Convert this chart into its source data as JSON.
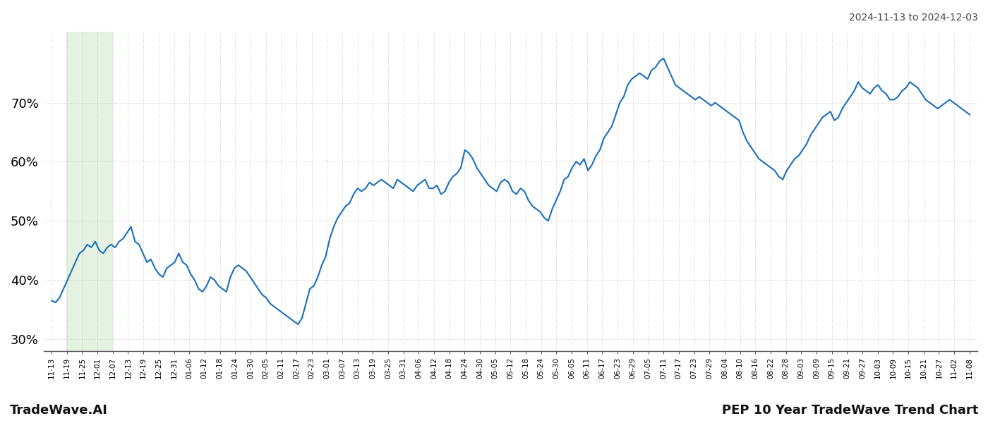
{
  "title_date_range": "2024-11-13 to 2024-12-03",
  "footer_left": "TradeWave.AI",
  "footer_right": "PEP 10 Year TradeWave Trend Chart",
  "line_color": "#1a6fba",
  "line_width": 1.5,
  "background_color": "#ffffff",
  "grid_color": "#cccccc",
  "grid_linestyle": "dotted",
  "highlight_color": "#d5ead0",
  "highlight_alpha": 0.6,
  "highlight_x_start_label": "11-19",
  "highlight_x_end_label": "12-07",
  "ylim": [
    28,
    82
  ],
  "yticks": [
    30,
    40,
    50,
    60,
    70
  ],
  "ytick_fontsize": 13,
  "xtick_fontsize": 7.5,
  "x_labels": [
    "11-13",
    "11-19",
    "11-25",
    "12-01",
    "12-07",
    "12-13",
    "12-19",
    "12-25",
    "12-31",
    "01-06",
    "01-12",
    "01-18",
    "01-24",
    "01-30",
    "02-05",
    "02-11",
    "02-17",
    "02-23",
    "03-01",
    "03-07",
    "03-13",
    "03-19",
    "03-25",
    "03-31",
    "04-06",
    "04-12",
    "04-18",
    "04-24",
    "04-30",
    "05-05",
    "05-12",
    "05-18",
    "05-24",
    "05-30",
    "06-05",
    "06-11",
    "06-17",
    "06-23",
    "06-29",
    "07-05",
    "07-11",
    "07-17",
    "07-23",
    "07-29",
    "08-04",
    "08-10",
    "08-16",
    "08-22",
    "08-28",
    "09-03",
    "09-09",
    "09-15",
    "09-21",
    "09-27",
    "10-03",
    "10-09",
    "10-15",
    "10-21",
    "10-27",
    "11-02",
    "11-08"
  ],
  "y_values": [
    36.5,
    36.2,
    37.0,
    38.5,
    40.0,
    41.5,
    43.0,
    44.5,
    45.0,
    46.0,
    45.5,
    46.5,
    45.0,
    44.5,
    45.5,
    46.0,
    45.5,
    46.5,
    47.0,
    48.0,
    49.0,
    46.5,
    46.0,
    44.5,
    43.0,
    43.5,
    42.0,
    41.0,
    40.5,
    42.0,
    42.5,
    43.0,
    44.5,
    43.0,
    42.5,
    41.0,
    40.0,
    38.5,
    38.0,
    39.0,
    40.5,
    40.0,
    39.0,
    38.5,
    38.0,
    40.5,
    42.0,
    42.5,
    42.0,
    41.5,
    40.5,
    39.5,
    38.5,
    37.5,
    37.0,
    36.0,
    35.5,
    35.0,
    34.5,
    34.0,
    33.5,
    33.0,
    32.5,
    33.5,
    36.0,
    38.5,
    39.0,
    40.5,
    42.5,
    44.0,
    47.0,
    49.0,
    50.5,
    51.5,
    52.5,
    53.0,
    54.5,
    55.5,
    55.0,
    55.5,
    56.5,
    56.0,
    56.5,
    57.0,
    56.5,
    56.0,
    55.5,
    57.0,
    56.5,
    56.0,
    55.5,
    55.0,
    56.0,
    56.5,
    57.0,
    55.5,
    55.5,
    56.0,
    54.5,
    55.0,
    56.5,
    57.5,
    58.0,
    59.0,
    62.0,
    61.5,
    60.5,
    59.0,
    58.0,
    57.0,
    56.0,
    55.5,
    55.0,
    56.5,
    57.0,
    56.5,
    55.0,
    54.5,
    55.5,
    55.0,
    53.5,
    52.5,
    52.0,
    51.5,
    50.5,
    50.0,
    52.0,
    53.5,
    55.0,
    57.0,
    57.5,
    59.0,
    60.0,
    59.5,
    60.5,
    58.5,
    59.5,
    61.0,
    62.0,
    64.0,
    65.0,
    66.0,
    68.0,
    70.0,
    71.0,
    73.0,
    74.0,
    74.5,
    75.0,
    74.5,
    74.0,
    75.5,
    76.0,
    77.0,
    77.5,
    76.0,
    74.5,
    73.0,
    72.5,
    72.0,
    71.5,
    71.0,
    70.5,
    71.0,
    70.5,
    70.0,
    69.5,
    70.0,
    69.5,
    69.0,
    68.5,
    68.0,
    67.5,
    67.0,
    65.0,
    63.5,
    62.5,
    61.5,
    60.5,
    60.0,
    59.5,
    59.0,
    58.5,
    57.5,
    57.0,
    58.5,
    59.5,
    60.5,
    61.0,
    62.0,
    63.0,
    64.5,
    65.5,
    66.5,
    67.5,
    68.0,
    68.5,
    67.0,
    67.5,
    69.0,
    70.0,
    71.0,
    72.0,
    73.5,
    72.5,
    72.0,
    71.5,
    72.5,
    73.0,
    72.0,
    71.5,
    70.5,
    70.5,
    71.0,
    72.0,
    72.5,
    73.5,
    73.0,
    72.5,
    71.5,
    70.5,
    70.0,
    69.5,
    69.0,
    69.5,
    70.0,
    70.5,
    70.0,
    69.5,
    69.0,
    68.5,
    68.0
  ]
}
